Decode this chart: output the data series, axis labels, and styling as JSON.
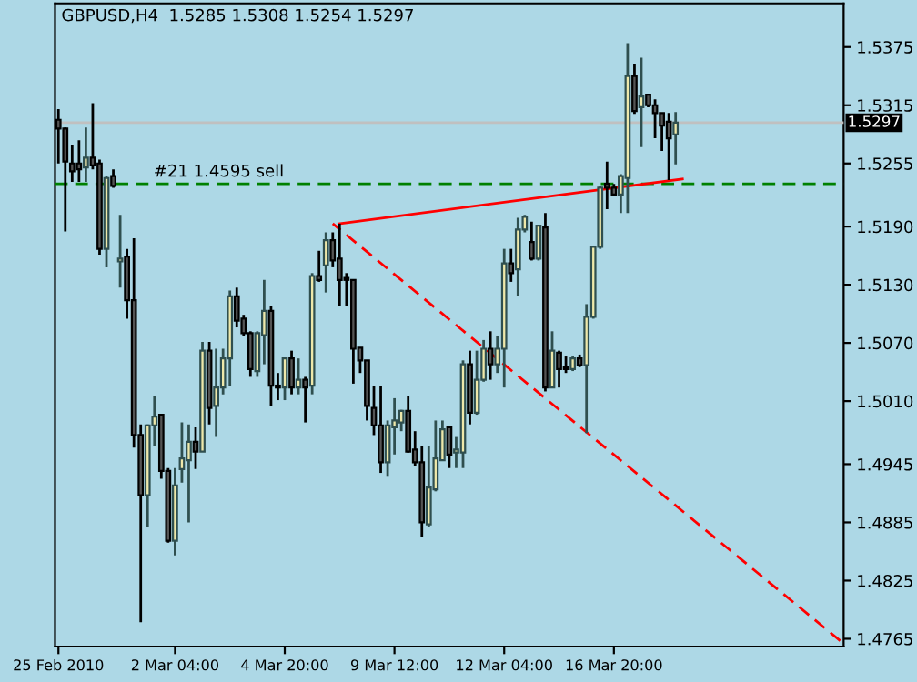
{
  "chart_data": {
    "type": "candlestick",
    "title": "GBPUSD,H4  1.5285 1.5308 1.5254 1.5297",
    "categories": [
      "25 Feb 2010",
      null,
      null,
      null,
      null,
      null,
      null,
      null,
      null,
      null,
      null,
      null,
      null,
      null,
      null,
      null,
      null,
      "2 Mar 04:00",
      null,
      null,
      null,
      null,
      null,
      null,
      null,
      null,
      null,
      null,
      null,
      null,
      null,
      null,
      null,
      "4 Mar 20:00",
      null,
      null,
      null,
      null,
      null,
      null,
      null,
      null,
      null,
      null,
      null,
      null,
      null,
      null,
      null,
      "9 Mar 12:00",
      null,
      null,
      null,
      null,
      null,
      null,
      null,
      null,
      null,
      null,
      null,
      null,
      null,
      null,
      null,
      "12 Mar 04:00",
      null,
      null,
      null,
      null,
      null,
      null,
      null,
      null,
      null,
      null,
      null,
      null,
      null,
      null,
      null,
      "16 Mar 20:00",
      null,
      null,
      null,
      null,
      null,
      null,
      null,
      null,
      null,
      null,
      null,
      null,
      null,
      null,
      null,
      null,
      null,
      null,
      null,
      null,
      null,
      null,
      null,
      null,
      null,
      null,
      null,
      null,
      null,
      null,
      null,
      null,
      null
    ],
    "ohlc": [
      [
        1.53,
        1.5311,
        1.5255,
        1.5291
      ],
      [
        1.5291,
        1.5292,
        1.5185,
        1.5257
      ],
      [
        1.5255,
        1.5274,
        1.5236,
        1.5247
      ],
      [
        1.5255,
        1.5279,
        1.5236,
        1.5249
      ],
      [
        1.5251,
        1.5292,
        1.5236,
        1.5261
      ],
      [
        1.5261,
        1.5317,
        1.5249,
        1.5253
      ],
      [
        1.5255,
        1.5259,
        1.5161,
        1.5167
      ],
      [
        1.5167,
        1.5242,
        1.5148,
        1.524
      ],
      [
        1.5242,
        1.5249,
        1.523,
        1.5232
      ],
      [
        1.5154,
        1.5202,
        1.5127,
        1.5157
      ],
      [
        1.5159,
        1.5167,
        1.5095,
        1.5114
      ],
      [
        1.5114,
        1.5178,
        1.4962,
        1.4975
      ],
      [
        1.4975,
        1.4986,
        1.4782,
        1.4913
      ],
      [
        1.4913,
        1.4986,
        1.488,
        1.4985
      ],
      [
        1.4985,
        1.5015,
        1.4964,
        1.4994
      ],
      [
        1.4996,
        1.4996,
        1.493,
        1.4938
      ],
      [
        1.4938,
        1.4941,
        1.4864,
        1.4866
      ],
      [
        1.4866,
        1.4941,
        1.4851,
        1.4923
      ],
      [
        1.494,
        1.4988,
        1.4926,
        1.4951
      ],
      [
        1.4949,
        1.4986,
        1.4885,
        1.4968
      ],
      [
        1.4968,
        1.4983,
        1.494,
        1.4958
      ],
      [
        1.4958,
        1.5071,
        1.4958,
        1.5062
      ],
      [
        1.5062,
        1.5071,
        1.4986,
        1.5003
      ],
      [
        1.5005,
        1.5064,
        1.4973,
        1.5024
      ],
      [
        1.5024,
        1.5064,
        1.5017,
        1.5054
      ],
      [
        1.5054,
        1.5124,
        1.5026,
        1.5118
      ],
      [
        1.5118,
        1.5127,
        1.5086,
        1.5093
      ],
      [
        1.5095,
        1.5099,
        1.5077,
        1.508
      ],
      [
        1.508,
        1.5082,
        1.5035,
        1.5043
      ],
      [
        1.5041,
        1.5082,
        1.5035,
        1.508
      ],
      [
        1.5078,
        1.5135,
        1.5048,
        1.5103
      ],
      [
        1.5103,
        1.5108,
        1.5005,
        1.5026
      ],
      [
        1.5026,
        1.5039,
        1.5011,
        1.5024
      ],
      [
        1.5024,
        1.5054,
        1.5011,
        1.5054
      ],
      [
        1.5054,
        1.5062,
        1.5017,
        1.5024
      ],
      [
        1.5024,
        1.5054,
        1.5017,
        1.5032
      ],
      [
        1.5032,
        1.5035,
        1.4988,
        1.5024
      ],
      [
        1.5026,
        1.5142,
        1.5017,
        1.5139
      ],
      [
        1.5139,
        1.5165,
        1.5133,
        1.5135
      ],
      [
        1.515,
        1.5184,
        1.5122,
        1.5176
      ],
      [
        1.5176,
        1.5184,
        1.5148,
        1.5155
      ],
      [
        1.5157,
        1.5193,
        1.5108,
        1.5135
      ],
      [
        1.5137,
        1.5142,
        1.5108,
        1.5135
      ],
      [
        1.5135,
        1.5135,
        1.5028,
        1.5064
      ],
      [
        1.5065,
        1.5065,
        1.5039,
        1.5052
      ],
      [
        1.5052,
        1.5052,
        1.499,
        1.5005
      ],
      [
        1.5003,
        1.5026,
        1.4975,
        1.4985
      ],
      [
        1.4985,
        1.5026,
        1.4936,
        1.4947
      ],
      [
        1.4947,
        1.499,
        1.4932,
        1.4985
      ],
      [
        1.4983,
        1.5013,
        1.4955,
        1.499
      ],
      [
        1.4988,
        1.5001,
        1.4979,
        1.5
      ],
      [
        1.5,
        1.5015,
        1.4957,
        1.4958
      ],
      [
        1.496,
        1.4979,
        1.4943,
        1.4947
      ],
      [
        1.4947,
        1.4964,
        1.487,
        1.4885
      ],
      [
        1.4883,
        1.4964,
        1.488,
        1.4921
      ],
      [
        1.4919,
        1.499,
        1.4917,
        1.4951
      ],
      [
        1.4949,
        1.499,
        1.4949,
        1.4981
      ],
      [
        1.4983,
        1.4983,
        1.4941,
        1.4955
      ],
      [
        1.4957,
        1.4973,
        1.4941,
        1.496
      ],
      [
        1.4957,
        1.5052,
        1.4941,
        1.5048
      ],
      [
        1.5048,
        1.5062,
        1.4986,
        1.4998
      ],
      [
        1.4998,
        1.5062,
        1.4996,
        1.5032
      ],
      [
        1.5032,
        1.5073,
        1.503,
        1.5064
      ],
      [
        1.5064,
        1.5082,
        1.5032,
        1.5048
      ],
      [
        1.5048,
        1.5077,
        1.5039,
        1.5064
      ],
      [
        1.5064,
        1.5167,
        1.5024,
        1.5152
      ],
      [
        1.5152,
        1.5167,
        1.5133,
        1.5142
      ],
      [
        1.5146,
        1.5199,
        1.5118,
        1.5187
      ],
      [
        1.5187,
        1.5202,
        1.5184,
        1.52
      ],
      [
        1.5174,
        1.5195,
        1.5155,
        1.5157
      ],
      [
        1.5157,
        1.5191,
        1.5155,
        1.5191
      ],
      [
        1.5189,
        1.5204,
        1.502,
        1.5024
      ],
      [
        1.5024,
        1.5082,
        1.5024,
        1.5062
      ],
      [
        1.506,
        1.5062,
        1.5024,
        1.5043
      ],
      [
        1.5045,
        1.5056,
        1.5039,
        1.5043
      ],
      [
        1.5043,
        1.5056,
        1.5041,
        1.5054
      ],
      [
        1.5054,
        1.5058,
        1.5045,
        1.5047
      ],
      [
        1.5047,
        1.511,
        1.4977,
        1.5097
      ],
      [
        1.5097,
        1.5169,
        1.5095,
        1.5169
      ],
      [
        1.5169,
        1.5232,
        1.5167,
        1.523
      ],
      [
        1.5234,
        1.5257,
        1.5208,
        1.523
      ],
      [
        1.523,
        1.5234,
        1.5223,
        1.5223
      ],
      [
        1.5223,
        1.5244,
        1.5204,
        1.5242
      ],
      [
        1.524,
        1.5379,
        1.5204,
        1.5345
      ],
      [
        1.5345,
        1.5358,
        1.5306,
        1.5309
      ],
      [
        1.5313,
        1.5364,
        1.5272,
        1.5324
      ],
      [
        1.5326,
        1.5326,
        1.5313,
        1.5315
      ],
      [
        1.5315,
        1.5321,
        1.5281,
        1.5307
      ],
      [
        1.5307,
        1.5307,
        1.5268,
        1.5294
      ],
      [
        1.5298,
        1.5307,
        1.5238,
        1.5281
      ],
      [
        1.5285,
        1.5308,
        1.5254,
        1.5297
      ],
      null,
      null,
      null,
      null,
      null,
      null,
      null,
      null,
      null,
      null,
      null,
      null,
      null,
      null,
      null,
      null,
      null,
      null,
      null,
      null,
      null,
      null,
      null,
      null
    ],
    "series": [
      {
        "type": "line",
        "values": [
          null,
          null,
          null,
          null,
          null,
          null,
          null,
          null,
          null,
          null,
          null,
          null,
          null,
          null,
          null,
          null,
          null,
          null,
          null,
          null,
          null,
          null,
          null,
          null,
          null,
          null,
          null,
          null,
          null,
          null,
          null,
          null,
          null,
          null,
          null,
          null,
          null,
          null,
          null,
          null,
          null,
          1.5193,
          null,
          null,
          null,
          null,
          null,
          null,
          null,
          null,
          null,
          null,
          null,
          null,
          null,
          null,
          null,
          null,
          null,
          null,
          null,
          null,
          null,
          null,
          null,
          null,
          null,
          null,
          null,
          null,
          null,
          null,
          null,
          null,
          null,
          null,
          null,
          null,
          null,
          null,
          null,
          null,
          null,
          null,
          null,
          null,
          null,
          null,
          null,
          null,
          null,
          1.5239,
          null,
          null,
          null,
          null,
          null,
          null,
          null,
          null,
          null,
          null,
          null,
          null,
          null,
          null,
          null,
          null,
          null,
          null,
          null,
          null,
          null,
          null,
          null
        ],
        "color": "#ff0000",
        "line_style": "solid"
      },
      {
        "type": "line",
        "values": [
          null,
          null,
          null,
          null,
          null,
          null,
          null,
          null,
          null,
          null,
          null,
          null,
          null,
          null,
          null,
          null,
          null,
          null,
          null,
          null,
          null,
          null,
          null,
          null,
          null,
          null,
          null,
          null,
          null,
          null,
          null,
          null,
          null,
          null,
          null,
          null,
          null,
          null,
          null,
          null,
          1.5193,
          null,
          null,
          null,
          null,
          null,
          null,
          null,
          null,
          null,
          null,
          null,
          null,
          null,
          null,
          null,
          null,
          null,
          null,
          null,
          null,
          null,
          null,
          null,
          null,
          null,
          null,
          null,
          null,
          null,
          null,
          null,
          null,
          null,
          null,
          null,
          null,
          null,
          null,
          null,
          null,
          null,
          null,
          null,
          null,
          null,
          null,
          null,
          null,
          null,
          null,
          null,
          null,
          null,
          null,
          null,
          null,
          null,
          null,
          null,
          null,
          null,
          null,
          null,
          null,
          null,
          null,
          null,
          null,
          null,
          null,
          null,
          null,
          null,
          1.4763
        ],
        "color": "#ff0000",
        "line_style": "dashed"
      }
    ],
    "ylim": [
      1.4757,
      1.542
    ],
    "yticks": [
      1.5375,
      1.5315,
      1.5255,
      {
        "value": 1.519,
        "label": "1.5190"
      },
      {
        "value": 1.513,
        "label": "1.5130"
      },
      {
        "value": 1.507,
        "label": "1.5070"
      },
      {
        "value": 1.501,
        "label": "1.5010"
      },
      1.4945,
      1.4885,
      1.4825,
      1.4765
    ],
    "ref_lines": [
      {
        "axis": "y",
        "value": 1.5297,
        "label": "1.5297",
        "color": "#c0c0c0",
        "line_style": "solid"
      },
      {
        "axis": "y",
        "value": 1.5234,
        "label": "#21 1.4595 sell",
        "color": "#008000",
        "line_style": "dashed"
      }
    ],
    "grid": false,
    "legend": false
  }
}
